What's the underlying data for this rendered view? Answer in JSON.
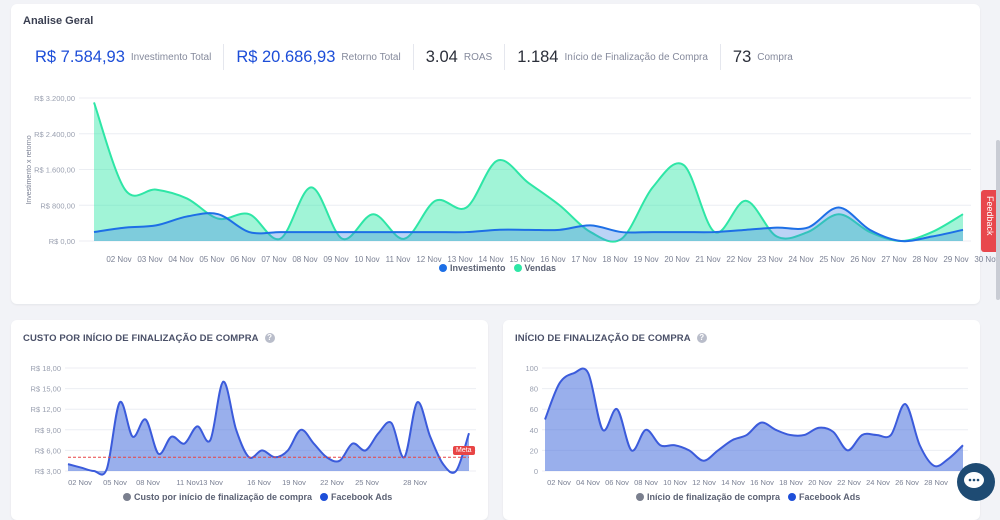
{
  "main": {
    "title": "Analise Geral",
    "kpis": [
      {
        "value": "R$ 7.584,93",
        "label": "Investimento Total",
        "color": "blue"
      },
      {
        "value": "R$ 20.686,93",
        "label": "Retorno Total",
        "color": "blue"
      },
      {
        "value": "3.04",
        "label": "ROAS",
        "color": "dark"
      },
      {
        "value": "1.184",
        "label": "Início de Finalização de Compra",
        "color": "dark"
      },
      {
        "value": "73",
        "label": "Compra",
        "color": "dark"
      }
    ],
    "legend": {
      "investimento": "Investimento",
      "vendas": "Vendas"
    }
  },
  "cpf": {
    "title": "CUSTO POR INÍCIO DE FINALIZAÇÃO DE COMPRA",
    "legend_a": "Custo por início de finalização de compra",
    "legend_b": "Facebook Ads",
    "meta_label": "Meta"
  },
  "if_card": {
    "title": "INÍCIO DE FINALIZAÇÃO DE COMPRA",
    "legend_a": "Início de finalização de compra",
    "legend_b": "Facebook Ads"
  },
  "feedback": "Feedback",
  "colors": {
    "blue": "#1d6fe6",
    "green": "#2ee6a6",
    "green_fill": "#8ff0cd",
    "dark_blue": "#3b5bdb",
    "meta_line": "#e84545"
  },
  "icons": {
    "help": "question-circle-icon",
    "chat": "chat-bubbles-icon"
  },
  "chart_data": [
    {
      "type": "area",
      "ylabel": "Investimento x retorno",
      "y_ticks": [
        "R$ 0,00",
        "R$ 800,00",
        "R$ 1.600,00",
        "R$ 2.400,00",
        "R$ 3.200,00"
      ],
      "ylim": [
        0,
        3200
      ],
      "x": [
        "02 Nov",
        "03 Nov",
        "04 Nov",
        "05 Nov",
        "06 Nov",
        "07 Nov",
        "08 Nov",
        "09 Nov",
        "10 Nov",
        "11 Nov",
        "12 Nov",
        "13 Nov",
        "14 Nov",
        "15 Nov",
        "16 Nov",
        "17 Nov",
        "18 Nov",
        "19 Nov",
        "20 Nov",
        "21 Nov",
        "22 Nov",
        "23 Nov",
        "24 Nov",
        "25 Nov",
        "26 Nov",
        "27 Nov",
        "28 Nov",
        "29 Nov",
        "30 Nov"
      ],
      "series": [
        {
          "name": "Vendas",
          "values": [
            3100,
            1150,
            1150,
            950,
            500,
            600,
            50,
            1200,
            50,
            600,
            50,
            900,
            750,
            1800,
            1300,
            800,
            200,
            50,
            1200,
            1700,
            200,
            900,
            100,
            200,
            600,
            200,
            0,
            200,
            600
          ]
        },
        {
          "name": "Investimento",
          "values": [
            200,
            300,
            350,
            550,
            600,
            200,
            200,
            200,
            200,
            200,
            200,
            200,
            200,
            250,
            250,
            250,
            350,
            200,
            200,
            200,
            200,
            250,
            300,
            300,
            750,
            250,
            0,
            100,
            250
          ]
        }
      ]
    },
    {
      "type": "area",
      "y_ticks": [
        "R$ 3,00",
        "R$ 6,00",
        "R$ 9,00",
        "R$ 12,00",
        "R$ 15,00",
        "R$ 18,00"
      ],
      "ylim": [
        3,
        18
      ],
      "x_ticks": [
        "02 Nov",
        "05 Nov",
        "08 Nov",
        "11 Nov",
        "13 Nov",
        "16 Nov",
        "19 Nov",
        "22 Nov",
        "25 Nov",
        "28 Nov"
      ],
      "series": [
        {
          "name": "Custo por início de finalização de compra",
          "values": [
            4,
            3.5,
            3,
            3.3,
            13,
            8,
            10.5,
            5.5,
            8,
            7,
            9.5,
            7.5,
            16,
            9,
            5,
            6,
            5,
            6,
            9,
            7,
            5,
            4.5,
            7,
            6,
            8.5,
            10,
            5,
            13,
            8,
            4,
            3,
            8.5
          ]
        }
      ],
      "meta": 5.0
    },
    {
      "type": "area",
      "y_ticks": [
        "0",
        "20",
        "40",
        "60",
        "80",
        "100"
      ],
      "ylim": [
        0,
        100
      ],
      "x_ticks": [
        "02 Nov",
        "04 Nov",
        "06 Nov",
        "08 Nov",
        "10 Nov",
        "12 Nov",
        "14 Nov",
        "16 Nov",
        "18 Nov",
        "20 Nov",
        "22 Nov",
        "24 Nov",
        "26 Nov",
        "28 Nov"
      ],
      "series": [
        {
          "name": "Início de finalização de compra",
          "values": [
            50,
            85,
            95,
            95,
            40,
            60,
            20,
            40,
            25,
            25,
            20,
            10,
            20,
            30,
            35,
            47,
            40,
            35,
            35,
            42,
            38,
            20,
            35,
            35,
            35,
            65,
            25,
            5,
            12,
            25
          ]
        }
      ]
    }
  ]
}
